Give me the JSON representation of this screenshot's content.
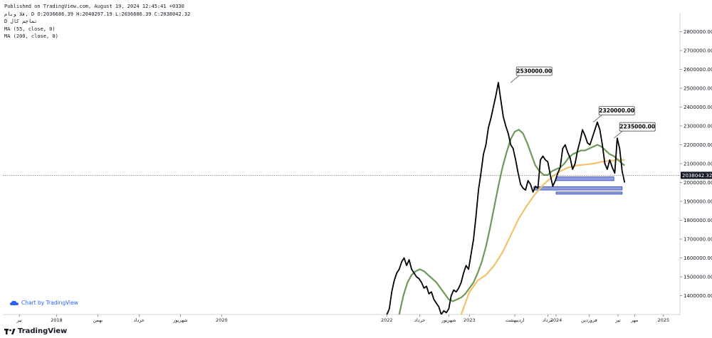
{
  "header": {
    "published": "Published on TradingView.com, August 19, 2024 12:45:41 +0330",
    "ohlc": "فلا وبام, D O:2036686.39 H:2040297.19 L:2036686.39 C:2038042.32",
    "symbol": "D تماچم کال",
    "ma1": "MA (55, close, 0)",
    "ma2": "MA (200, close, 0)"
  },
  "credit": {
    "text": "Chart by TradingView",
    "icon": "tradingview-cloud-icon"
  },
  "footer": {
    "brand": "TradingView",
    "icon": "tradingview-logo-icon"
  },
  "colors": {
    "price": "#000000",
    "ma55": "#6b9a5a",
    "ma200": "#f2c26a",
    "zone_fill": "#8c9cdf",
    "zone_stroke": "#3b4ba8"
  },
  "chart_data": {
    "type": "line",
    "ylim": [
      1300000,
      2900000
    ],
    "y_ticks": [
      1400000,
      1500000,
      1600000,
      1700000,
      1800000,
      1900000,
      2000000,
      2100000,
      2200000,
      2300000,
      2400000,
      2500000,
      2600000,
      2700000,
      2800000
    ],
    "y_tick_labels": [
      "1400000.00",
      "1500000.00",
      "1600000.00",
      "1700000.00",
      "1800000.00",
      "1900000.00",
      "2000000.00",
      "2100000.00",
      "2200000.00",
      "2300000.00",
      "2400000.00",
      "2500000.00",
      "2600000.00",
      "2700000.00",
      "2800000.00"
    ],
    "x_ticks": [
      {
        "label": "تیر",
        "x": 2017.55
      },
      {
        "label": "2018",
        "x": 2018.0
      },
      {
        "label": "بهمن",
        "x": 2018.5
      },
      {
        "label": "خرداد",
        "x": 2019.0
      },
      {
        "label": "شهریور",
        "x": 2019.5
      },
      {
        "label": "2020",
        "x": 2020.0
      },
      {
        "label": "2022",
        "x": 2022.0
      },
      {
        "label": "خرداد",
        "x": 2022.4
      },
      {
        "label": "شهریور",
        "x": 2022.75
      },
      {
        "label": "2023",
        "x": 2023.0
      },
      {
        "label": "اردیبهشت",
        "x": 2023.55
      },
      {
        "label": "مرداد",
        "x": 2023.95
      },
      {
        "label": "2024",
        "x": 2024.05
      },
      {
        "label": "فروردین",
        "x": 2024.45
      },
      {
        "label": "تیر",
        "x": 2024.8
      },
      {
        "label": "مهر",
        "x": 2025.0
      },
      {
        "label": "2025",
        "x": 2025.35
      }
    ],
    "last_price": {
      "value": 2038042.32,
      "label": "2038042.32"
    },
    "annotations": [
      {
        "label": "2530000.00",
        "x": 2023.5,
        "y": 2530000
      },
      {
        "label": "2320000.00",
        "x": 2024.5,
        "y": 2320000
      },
      {
        "label": "2235000.00",
        "x": 2024.75,
        "y": 2235000
      }
    ],
    "zones": [
      {
        "x0": 2024.05,
        "x1": 2024.75,
        "y0": 2010000,
        "y1": 2030000
      },
      {
        "x0": 2023.78,
        "x1": 2024.85,
        "y0": 1960000,
        "y1": 1978000
      },
      {
        "x0": 2024.05,
        "x1": 2024.85,
        "y0": 1938000,
        "y1": 1950000
      }
    ],
    "series": [
      {
        "name": "",
        "role": "price",
        "x": [
          2022.0,
          2022.03,
          2022.06,
          2022.09,
          2022.12,
          2022.15,
          2022.18,
          2022.21,
          2022.24,
          2022.27,
          2022.3,
          2022.33,
          2022.36,
          2022.39,
          2022.42,
          2022.45,
          2022.48,
          2022.51,
          2022.54,
          2022.57,
          2022.6,
          2022.63,
          2022.66,
          2022.69,
          2022.72,
          2022.75,
          2022.78,
          2022.81,
          2022.84,
          2022.87,
          2022.9,
          2022.93,
          2022.96,
          2022.99,
          2023.02,
          2023.05,
          2023.08,
          2023.11,
          2023.14,
          2023.17,
          2023.2,
          2023.23,
          2023.26,
          2023.29,
          2023.32,
          2023.35,
          2023.38,
          2023.41,
          2023.44,
          2023.47,
          2023.5,
          2023.53,
          2023.56,
          2023.59,
          2023.62,
          2023.65,
          2023.68,
          2023.71,
          2023.74,
          2023.77,
          2023.8,
          2023.83,
          2023.86,
          2023.89,
          2023.92,
          2023.95,
          2023.98,
          2024.01,
          2024.04,
          2024.07,
          2024.1,
          2024.13,
          2024.16,
          2024.19,
          2024.22,
          2024.25,
          2024.28,
          2024.31,
          2024.34,
          2024.37,
          2024.4,
          2024.43,
          2024.46,
          2024.49,
          2024.52,
          2024.55,
          2024.58,
          2024.61,
          2024.64,
          2024.67,
          2024.7,
          2024.73,
          2024.76,
          2024.79,
          2024.82,
          2024.85,
          2024.88
        ],
        "y": [
          1300000,
          1330000,
          1420000,
          1480000,
          1520000,
          1540000,
          1580000,
          1600000,
          1560000,
          1590000,
          1540000,
          1520000,
          1500000,
          1490000,
          1470000,
          1440000,
          1450000,
          1410000,
          1420000,
          1380000,
          1360000,
          1340000,
          1300000,
          1320000,
          1310000,
          1330000,
          1400000,
          1430000,
          1420000,
          1440000,
          1470000,
          1520000,
          1560000,
          1540000,
          1620000,
          1700000,
          1820000,
          1960000,
          2050000,
          2150000,
          2200000,
          2290000,
          2340000,
          2400000,
          2460000,
          2530000,
          2440000,
          2350000,
          2300000,
          2260000,
          2200000,
          2180000,
          2120000,
          2050000,
          1990000,
          1970000,
          1960000,
          2010000,
          1990000,
          1950000,
          1980000,
          1970000,
          2120000,
          2140000,
          2120000,
          2110000,
          2040000,
          1980000,
          2010000,
          2050000,
          2080000,
          2180000,
          2200000,
          2160000,
          2130000,
          2070000,
          2100000,
          2170000,
          2220000,
          2280000,
          2250000,
          2210000,
          2200000,
          2240000,
          2280000,
          2320000,
          2280000,
          2200000,
          2100000,
          2070000,
          2120000,
          2080000,
          2050000,
          2235000,
          2180000,
          2060000,
          2000000
        ]
      },
      {
        "name": "",
        "role": "ma55",
        "x": [
          2022.15,
          2022.2,
          2022.25,
          2022.3,
          2022.35,
          2022.4,
          2022.45,
          2022.5,
          2022.55,
          2022.6,
          2022.65,
          2022.7,
          2022.75,
          2022.8,
          2022.85,
          2022.9,
          2022.95,
          2023.0,
          2023.05,
          2023.1,
          2023.15,
          2023.2,
          2023.25,
          2023.3,
          2023.35,
          2023.4,
          2023.45,
          2023.5,
          2023.55,
          2023.6,
          2023.65,
          2023.7,
          2023.75,
          2023.8,
          2023.85,
          2023.9,
          2023.95,
          2024.0,
          2024.05,
          2024.1,
          2024.15,
          2024.2,
          2024.25,
          2024.3,
          2024.35,
          2024.4,
          2024.45,
          2024.5,
          2024.55,
          2024.6,
          2024.65,
          2024.7,
          2024.75,
          2024.8,
          2024.85,
          2024.88
        ],
        "y": [
          1300000,
          1400000,
          1470000,
          1510000,
          1530000,
          1540000,
          1530000,
          1510000,
          1490000,
          1470000,
          1440000,
          1410000,
          1380000,
          1370000,
          1380000,
          1390000,
          1410000,
          1440000,
          1470000,
          1520000,
          1580000,
          1660000,
          1760000,
          1870000,
          1980000,
          2080000,
          2160000,
          2230000,
          2270000,
          2280000,
          2260000,
          2210000,
          2150000,
          2090000,
          2060000,
          2040000,
          2040000,
          2060000,
          2070000,
          2080000,
          2100000,
          2130000,
          2150000,
          2160000,
          2170000,
          2170000,
          2180000,
          2190000,
          2200000,
          2190000,
          2170000,
          2150000,
          2140000,
          2120000,
          2100000,
          2090000
        ]
      },
      {
        "name": "",
        "role": "ma200",
        "x": [
          2022.9,
          2022.95,
          2023.0,
          2023.1,
          2023.2,
          2023.3,
          2023.4,
          2023.5,
          2023.6,
          2023.7,
          2023.8,
          2023.9,
          2024.0,
          2024.1,
          2024.2,
          2024.3,
          2024.4,
          2024.5,
          2024.6,
          2024.7,
          2024.8,
          2024.88
        ],
        "y": [
          1300000,
          1360000,
          1420000,
          1480000,
          1510000,
          1560000,
          1630000,
          1720000,
          1810000,
          1880000,
          1940000,
          1990000,
          2030000,
          2060000,
          2080000,
          2090000,
          2095000,
          2100000,
          2110000,
          2115000,
          2120000,
          2120000
        ]
      }
    ]
  }
}
